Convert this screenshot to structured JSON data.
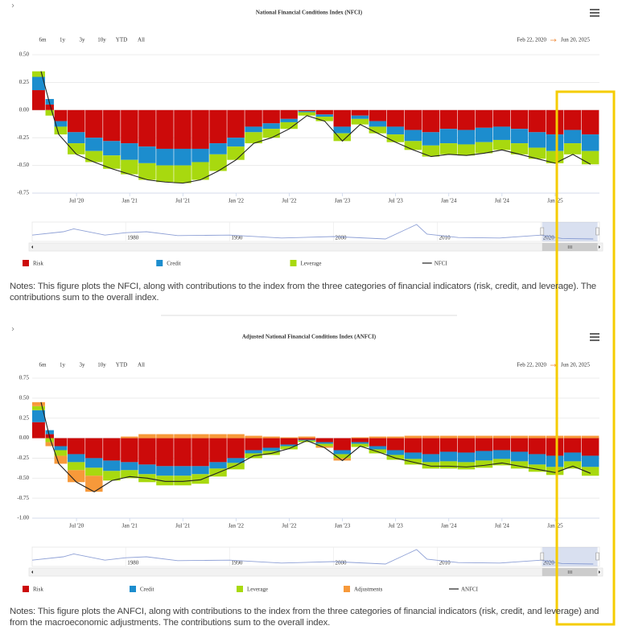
{
  "chart_data": [
    {
      "type": "bar",
      "stacked": true,
      "title": "National Financial Conditions Index (NFCI)",
      "range_buttons": [
        "6m",
        "1y",
        "3y",
        "10y",
        "YTD",
        "All"
      ],
      "date_range": {
        "from": "Feb 22, 2020",
        "to": "Jun 20, 2025"
      },
      "x": [
        "2020-03",
        "2020-04",
        "2020-05",
        "2020-07",
        "2020-09",
        "2020-11",
        "2021-01",
        "2021-03",
        "2021-05",
        "2021-07",
        "2021-09",
        "2021-11",
        "2022-01",
        "2022-03",
        "2022-05",
        "2022-07",
        "2022-09",
        "2022-11",
        "2023-01",
        "2023-03",
        "2023-05",
        "2023-07",
        "2023-09",
        "2023-11",
        "2024-01",
        "2024-03",
        "2024-05",
        "2024-07",
        "2024-09",
        "2024-11",
        "2025-01",
        "2025-03",
        "2025-05"
      ],
      "xlim": [
        "2020-02",
        "2025-06"
      ],
      "xticks": [
        {
          "value": "2020-07",
          "label": "Jul '20"
        },
        {
          "value": "2021-01",
          "label": "Jan '21"
        },
        {
          "value": "2021-07",
          "label": "Jul '21"
        },
        {
          "value": "2022-01",
          "label": "Jan '22"
        },
        {
          "value": "2022-07",
          "label": "Jul '22"
        },
        {
          "value": "2023-01",
          "label": "Jan '23"
        },
        {
          "value": "2023-07",
          "label": "Jul '23"
        },
        {
          "value": "2024-01",
          "label": "Jan '24"
        },
        {
          "value": "2024-07",
          "label": "Jul '24"
        },
        {
          "value": "2025-01",
          "label": "Jan '25"
        }
      ],
      "ylim": [
        -0.75,
        0.5
      ],
      "yticks": [
        {
          "value": 0.5,
          "label": "0.50"
        },
        0.25,
        {
          "value": 0,
          "label": "0.00"
        },
        -0.25,
        {
          "value": -0.5,
          "label": "-0.50"
        },
        -0.75
      ],
      "grid": true,
      "series": [
        {
          "name": "Risk",
          "color": "#cc0a0a",
          "values": [
            0.18,
            0.05,
            -0.1,
            -0.2,
            -0.25,
            -0.28,
            -0.3,
            -0.33,
            -0.35,
            -0.35,
            -0.35,
            -0.3,
            -0.25,
            -0.15,
            -0.12,
            -0.08,
            -0.01,
            -0.04,
            -0.15,
            -0.05,
            -0.1,
            -0.15,
            -0.18,
            -0.2,
            -0.17,
            -0.18,
            -0.16,
            -0.15,
            -0.17,
            -0.2,
            -0.22,
            -0.18,
            -0.22
          ]
        },
        {
          "name": "Credit",
          "color": "#1c8dce",
          "values": [
            0.12,
            0.05,
            -0.05,
            -0.1,
            -0.12,
            -0.13,
            -0.15,
            -0.15,
            -0.15,
            -0.15,
            -0.12,
            -0.1,
            -0.08,
            -0.05,
            -0.05,
            -0.03,
            -0.01,
            -0.02,
            -0.06,
            -0.03,
            -0.05,
            -0.07,
            -0.1,
            -0.12,
            -0.13,
            -0.13,
            -0.13,
            -0.12,
            -0.13,
            -0.14,
            -0.15,
            -0.12,
            -0.15
          ]
        },
        {
          "name": "Leverage",
          "color": "#a8d90f",
          "values": [
            0.05,
            -0.05,
            -0.07,
            -0.1,
            -0.1,
            -0.12,
            -0.13,
            -0.15,
            -0.15,
            -0.16,
            -0.16,
            -0.15,
            -0.12,
            -0.1,
            -0.08,
            -0.06,
            -0.03,
            -0.04,
            -0.07,
            -0.05,
            -0.06,
            -0.07,
            -0.08,
            -0.1,
            -0.1,
            -0.1,
            -0.1,
            -0.09,
            -0.1,
            -0.1,
            -0.11,
            -0.1,
            -0.12
          ]
        },
        {
          "name": "NFCI",
          "type": "line",
          "color": "#222222",
          "values": [
            0.35,
            0.05,
            -0.22,
            -0.4,
            -0.47,
            -0.53,
            -0.58,
            -0.63,
            -0.65,
            -0.66,
            -0.63,
            -0.55,
            -0.45,
            -0.3,
            -0.25,
            -0.17,
            -0.05,
            -0.1,
            -0.28,
            -0.13,
            -0.21,
            -0.29,
            -0.36,
            -0.42,
            -0.4,
            -0.41,
            -0.39,
            -0.36,
            -0.4,
            -0.44,
            -0.48,
            -0.4,
            -0.49
          ]
        }
      ],
      "navigator": {
        "x": [
          1971,
          1974,
          1975,
          1978,
          1980,
          1982,
          1985,
          1990,
          1995,
          2000,
          2005,
          2008,
          2009,
          2012,
          2016,
          2020,
          2022,
          2025
        ],
        "values": [
          0.3,
          1.0,
          1.6,
          0.3,
          0.8,
          1.0,
          0.2,
          0.3,
          -0.3,
          0.0,
          -0.5,
          2.5,
          0.5,
          -0.2,
          -0.3,
          0.3,
          -0.4,
          -0.5
        ],
        "xlim": [
          1971,
          2025.6
        ],
        "ylim": [
          -1,
          3
        ],
        "xticks": [
          1980,
          1990,
          2000,
          2010,
          2020
        ]
      },
      "note": "Notes: This figure plots the NFCI, along with contributions to the index from the three categories of financial indicators (risk, credit, and leverage). The contributions sum to the overall index."
    },
    {
      "type": "bar",
      "stacked": true,
      "title": "Adjusted National Financial Conditions Index (ANFCI)",
      "range_buttons": [
        "6m",
        "1y",
        "3y",
        "10y",
        "YTD",
        "All"
      ],
      "date_range": {
        "from": "Feb 22, 2020",
        "to": "Jun 20, 2025"
      },
      "x": [
        "2020-03",
        "2020-04",
        "2020-05",
        "2020-07",
        "2020-09",
        "2020-11",
        "2021-01",
        "2021-03",
        "2021-05",
        "2021-07",
        "2021-09",
        "2021-11",
        "2022-01",
        "2022-03",
        "2022-05",
        "2022-07",
        "2022-09",
        "2022-11",
        "2023-01",
        "2023-03",
        "2023-05",
        "2023-07",
        "2023-09",
        "2023-11",
        "2024-01",
        "2024-03",
        "2024-05",
        "2024-07",
        "2024-09",
        "2024-11",
        "2025-01",
        "2025-03",
        "2025-05"
      ],
      "xlim": [
        "2020-02",
        "2025-06"
      ],
      "xticks": [
        {
          "value": "2020-07",
          "label": "Jul '20"
        },
        {
          "value": "2021-01",
          "label": "Jan '21"
        },
        {
          "value": "2021-07",
          "label": "Jul '21"
        },
        {
          "value": "2022-01",
          "label": "Jan '22"
        },
        {
          "value": "2022-07",
          "label": "Jul '22"
        },
        {
          "value": "2023-01",
          "label": "Jan '23"
        },
        {
          "value": "2023-07",
          "label": "Jul '23"
        },
        {
          "value": "2024-01",
          "label": "Jan '24"
        },
        {
          "value": "2024-07",
          "label": "Jul '24"
        },
        {
          "value": "2025-01",
          "label": "Jan '25"
        }
      ],
      "ylim": [
        -1,
        0.75
      ],
      "yticks": [
        0.75,
        {
          "value": 0.5,
          "label": "0.50"
        },
        0.25,
        {
          "value": 0,
          "label": "0.00"
        },
        -0.25,
        {
          "value": -0.5,
          "label": "-0.50"
        },
        -0.75,
        {
          "value": -1,
          "label": "-1.00"
        }
      ],
      "grid": true,
      "series": [
        {
          "name": "Risk",
          "color": "#cc0a0a",
          "values": [
            0.2,
            0.05,
            -0.1,
            -0.2,
            -0.25,
            -0.28,
            -0.3,
            -0.33,
            -0.35,
            -0.35,
            -0.35,
            -0.3,
            -0.25,
            -0.15,
            -0.12,
            -0.08,
            -0.02,
            -0.05,
            -0.15,
            -0.05,
            -0.1,
            -0.15,
            -0.18,
            -0.2,
            -0.17,
            -0.18,
            -0.16,
            -0.15,
            -0.17,
            -0.2,
            -0.22,
            -0.18,
            -0.22
          ]
        },
        {
          "name": "Credit",
          "color": "#1c8dce",
          "values": [
            0.15,
            0.05,
            -0.05,
            -0.1,
            -0.12,
            -0.13,
            -0.1,
            -0.12,
            -0.12,
            -0.12,
            -0.1,
            -0.08,
            -0.06,
            -0.04,
            -0.04,
            -0.02,
            -0.01,
            -0.02,
            -0.05,
            -0.02,
            -0.04,
            -0.06,
            -0.08,
            -0.1,
            -0.12,
            -0.12,
            -0.12,
            -0.11,
            -0.12,
            -0.13,
            -0.14,
            -0.11,
            -0.14
          ]
        },
        {
          "name": "Leverage",
          "color": "#a8d90f",
          "values": [
            0.05,
            -0.05,
            -0.07,
            -0.1,
            -0.1,
            -0.12,
            -0.1,
            -0.1,
            -0.12,
            -0.12,
            -0.12,
            -0.1,
            -0.08,
            -0.06,
            -0.05,
            -0.04,
            -0.02,
            -0.03,
            -0.05,
            -0.04,
            -0.05,
            -0.06,
            -0.07,
            -0.08,
            -0.09,
            -0.09,
            -0.09,
            -0.08,
            -0.09,
            -0.09,
            -0.1,
            -0.09,
            -0.11
          ]
        },
        {
          "name": "Adjustments",
          "color": "#f7993a",
          "values": [
            0.05,
            -0.05,
            -0.1,
            -0.15,
            -0.2,
            0,
            0.02,
            0.05,
            0.05,
            0.05,
            0.05,
            0.05,
            0.05,
            0.03,
            0.02,
            0.01,
            0.02,
            -0.02,
            -0.03,
            0.01,
            0.02,
            0.02,
            0.03,
            0.03,
            0.03,
            0.03,
            0.03,
            0.03,
            0.03,
            0.03,
            0.03,
            0.03,
            0.03
          ]
        },
        {
          "name": "ANFCI",
          "type": "line",
          "color": "#222222",
          "values": [
            0.45,
            0,
            -0.32,
            -0.55,
            -0.67,
            -0.53,
            -0.48,
            -0.5,
            -0.54,
            -0.54,
            -0.52,
            -0.43,
            -0.34,
            -0.22,
            -0.19,
            -0.13,
            -0.03,
            -0.12,
            -0.28,
            -0.1,
            -0.17,
            -0.25,
            -0.3,
            -0.35,
            -0.35,
            -0.36,
            -0.34,
            -0.31,
            -0.35,
            -0.39,
            -0.43,
            -0.35,
            -0.44
          ]
        }
      ],
      "navigator": {
        "x": [
          1971,
          1974,
          1975,
          1978,
          1980,
          1982,
          1985,
          1990,
          1995,
          2000,
          2005,
          2008,
          2009,
          2012,
          2016,
          2020,
          2022,
          2025
        ],
        "values": [
          0.3,
          1.0,
          1.6,
          0.3,
          0.8,
          1.0,
          0.2,
          0.3,
          -0.3,
          0.0,
          -0.5,
          2.5,
          0.5,
          -0.2,
          -0.3,
          0.3,
          -0.4,
          -0.5
        ],
        "xlim": [
          1971,
          2025.6
        ],
        "ylim": [
          -1,
          3
        ],
        "xticks": [
          1980,
          1990,
          2000,
          2010,
          2020
        ]
      },
      "note": "Notes: This figure plots the ANFCI, along with contributions to the index from the three categories of financial indicators (risk, credit, and leverage) and from the macroeconomic adjustments. The contributions sum to the overall index."
    }
  ]
}
